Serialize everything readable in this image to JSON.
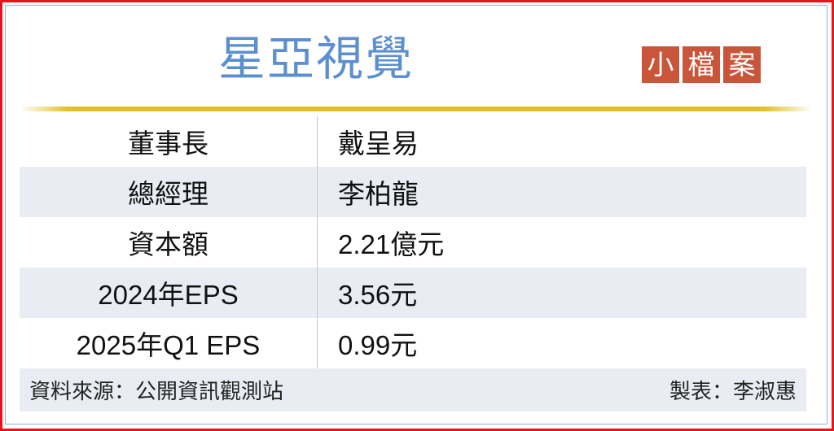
{
  "title": "星亞視覺",
  "badge": [
    "小",
    "檔",
    "案"
  ],
  "colors": {
    "title": "#5b8fd0",
    "badge": "#c9553a",
    "rule": "#e2c128",
    "stripe": "#e9edf3",
    "frame": "#e8141b"
  },
  "rows": [
    {
      "label": "董事長",
      "value": "戴呈易"
    },
    {
      "label": "總經理",
      "value": "李柏龍"
    },
    {
      "label": "資本額",
      "value": "2.21億元"
    },
    {
      "label": "2024年EPS",
      "value": "3.56元"
    },
    {
      "label": "2025年Q1 EPS",
      "value": "0.99元"
    }
  ],
  "footer": {
    "source": "資料來源：公開資訊觀測站",
    "author": "製表：李淑惠"
  }
}
